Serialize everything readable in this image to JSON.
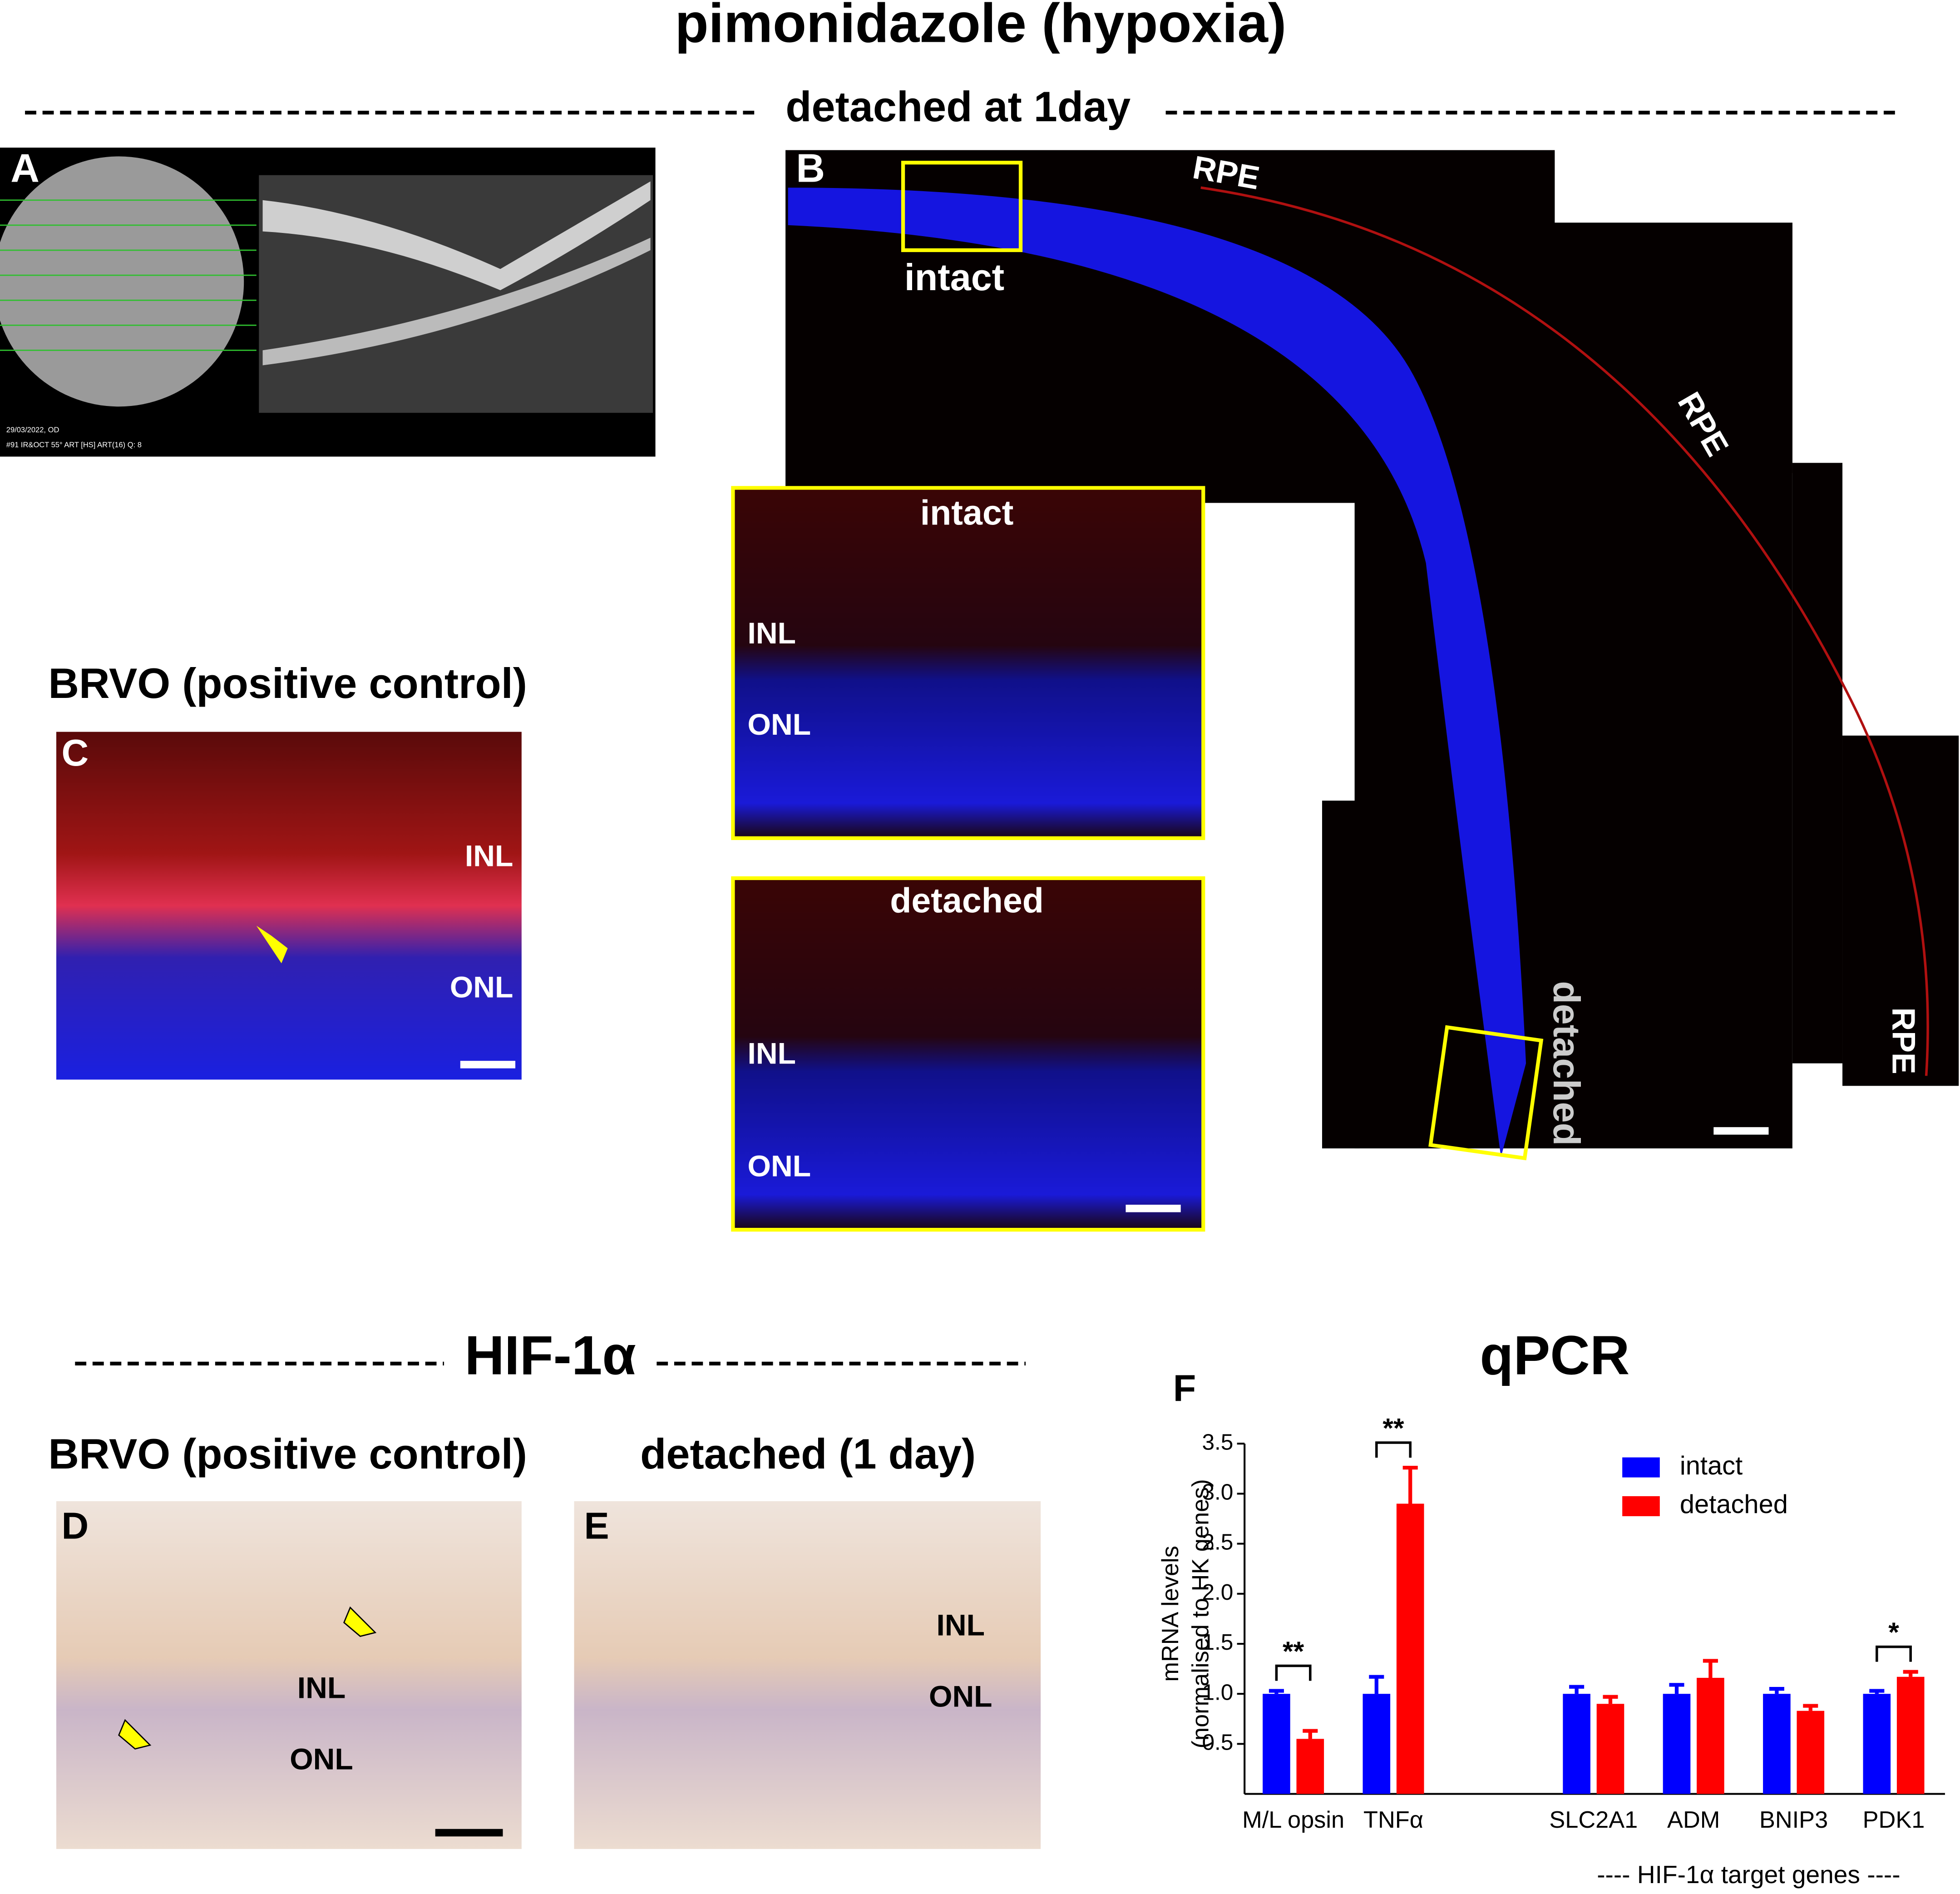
{
  "title": "pimonidazole (hypoxia)",
  "subtitle": "detached at 1day",
  "panels": {
    "A": {
      "letter": "A",
      "date": "29/03/2022, OD",
      "scan": "#91 IR&OCT 55° ART [HS] ART(16) Q: 8"
    },
    "B": {
      "letter": "B",
      "labels": [
        "RPE",
        "RPE",
        "RPE",
        "intact",
        "detached"
      ],
      "insets": [
        {
          "title": "intact",
          "layers": [
            "INL",
            "ONL"
          ]
        },
        {
          "title": "detached",
          "layers": [
            "INL",
            "ONL"
          ]
        }
      ]
    },
    "C": {
      "letter": "C",
      "heading": "BRVO (positive control)",
      "layers": [
        "INL",
        "ONL"
      ]
    },
    "hif_heading": "HIF-1α",
    "D": {
      "letter": "D",
      "heading": "BRVO (positive control)",
      "layers": [
        "INL",
        "ONL"
      ]
    },
    "E": {
      "letter": "E",
      "heading": "detached (1 day)",
      "layers": [
        "INL",
        "ONL"
      ]
    },
    "F": {
      "letter": "F",
      "heading": "qPCR"
    }
  },
  "chart_data": {
    "type": "bar",
    "ylabel": [
      "mRNA levels",
      "(normalised to HK genes)"
    ],
    "categories": [
      "M/L opsin",
      "TNFα",
      "SLC2A1",
      "ADM",
      "BNIP3",
      "PDK1"
    ],
    "group_label": "---- HIF-1α target genes ----",
    "series": [
      {
        "name": "intact",
        "color": "#0000ff",
        "values": [
          1.0,
          1.0,
          1.0,
          1.0,
          1.0,
          1.0
        ],
        "errors": [
          0.03,
          0.17,
          0.07,
          0.09,
          0.05,
          0.03
        ]
      },
      {
        "name": "detached",
        "color": "#ff0000",
        "values": [
          0.55,
          2.9,
          0.9,
          1.16,
          0.83,
          1.17
        ],
        "errors": [
          0.08,
          0.36,
          0.07,
          0.17,
          0.05,
          0.05
        ]
      }
    ],
    "significance": [
      "**",
      "**",
      null,
      null,
      null,
      "*"
    ],
    "ylim": [
      0,
      3.5
    ],
    "yticks": [
      0.5,
      {
        "value": 1,
        "label": "1.0"
      },
      1.5,
      {
        "value": 2,
        "label": "2.0"
      },
      2.5,
      {
        "value": 3,
        "label": "3.0"
      },
      3.5
    ],
    "legend": "top-right"
  }
}
